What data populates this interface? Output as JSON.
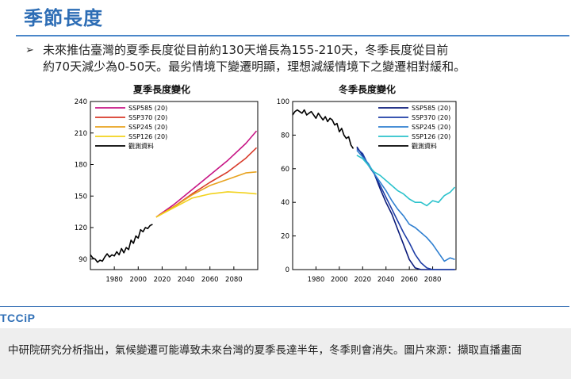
{
  "slide": {
    "title": "季節長度",
    "bullet_line1": "未來推估臺灣的夏季長度從目前約130天增長為155-210天，冬季長度從目前",
    "bullet_line2": "約70天減少為0-50天。最劣情境下變遷明顯，理想減緩情境下之變遷相對緩和。",
    "logo": "TCCiP"
  },
  "caption": "中研院研究分析指出，氣候變遷可能導致未來台灣的夏季長達半年，冬季則會消失。圖片來源：擷取直播畫面",
  "chart_data": [
    {
      "type": "line",
      "title": "夏季長度變化",
      "xlim": [
        1960,
        2100
      ],
      "ylim": [
        80,
        240
      ],
      "xticks": [
        1980,
        2000,
        2020,
        2040,
        2060,
        2080
      ],
      "yticks": [
        90,
        120,
        150,
        180,
        210,
        240
      ],
      "legend_position": "top-left",
      "series": [
        {
          "name": "SSP585 (20)",
          "color": "#c71585",
          "x": [
            2015,
            2030,
            2045,
            2060,
            2075,
            2090,
            2099
          ],
          "y": [
            130,
            142,
            156,
            170,
            184,
            200,
            212
          ]
        },
        {
          "name": "SSP370 (20)",
          "color": "#d83a2a",
          "x": [
            2015,
            2030,
            2045,
            2060,
            2075,
            2090,
            2099
          ],
          "y": [
            130,
            140,
            152,
            163,
            173,
            186,
            196
          ]
        },
        {
          "name": "SSP245 (20)",
          "color": "#e8a21e",
          "x": [
            2015,
            2030,
            2045,
            2060,
            2075,
            2090,
            2099
          ],
          "y": [
            130,
            140,
            151,
            160,
            166,
            172,
            173
          ]
        },
        {
          "name": "SSP126 (20)",
          "color": "#f2d21c",
          "x": [
            2015,
            2030,
            2045,
            2060,
            2075,
            2090,
            2099
          ],
          "y": [
            130,
            139,
            148,
            152,
            154,
            153,
            152
          ]
        },
        {
          "name": "觀測資料",
          "color": "#000000",
          "x": [
            1960,
            1962,
            1964,
            1966,
            1968,
            1970,
            1972,
            1974,
            1976,
            1978,
            1980,
            1982,
            1984,
            1986,
            1988,
            1990,
            1992,
            1994,
            1996,
            1998,
            2000,
            2002,
            2004,
            2006,
            2008,
            2010,
            2012
          ],
          "y": [
            94,
            91,
            90,
            87,
            89,
            88,
            92,
            95,
            92,
            94,
            93,
            97,
            94,
            100,
            96,
            101,
            99,
            108,
            105,
            112,
            110,
            118,
            116,
            120,
            119,
            122,
            123
          ]
        }
      ]
    },
    {
      "type": "line",
      "title": "冬季長度變化",
      "xlim": [
        1960,
        2100
      ],
      "ylim": [
        0,
        100
      ],
      "xticks": [
        1980,
        2000,
        2020,
        2040,
        2060,
        2080
      ],
      "yticks": [
        0,
        20,
        40,
        60,
        80,
        100
      ],
      "legend_position": "top-right",
      "series": [
        {
          "name": "SSP585 (20)",
          "color": "#0a1a7a",
          "x": [
            2015,
            2020,
            2025,
            2030,
            2035,
            2040,
            2045,
            2050,
            2055,
            2060,
            2065,
            2070,
            2080,
            2090,
            2099
          ],
          "y": [
            73,
            68,
            62,
            57,
            48,
            40,
            33,
            24,
            15,
            6,
            1,
            0,
            0,
            0,
            0
          ]
        },
        {
          "name": "SSP370 (20)",
          "color": "#1f3ea6",
          "x": [
            2015,
            2020,
            2025,
            2030,
            2035,
            2040,
            2045,
            2050,
            2055,
            2060,
            2065,
            2070,
            2075,
            2080,
            2090,
            2099
          ],
          "y": [
            72,
            69,
            62,
            57,
            50,
            43,
            36,
            29,
            22,
            16,
            9,
            4,
            1,
            0,
            0,
            0
          ]
        },
        {
          "name": "SSP245 (20)",
          "color": "#2f7fd0",
          "x": [
            2015,
            2020,
            2025,
            2030,
            2035,
            2040,
            2045,
            2050,
            2055,
            2060,
            2065,
            2070,
            2075,
            2080,
            2085,
            2090,
            2095,
            2099
          ],
          "y": [
            71,
            67,
            63,
            57,
            52,
            47,
            41,
            36,
            32,
            27,
            25,
            22,
            19,
            15,
            10,
            5,
            7,
            6
          ]
        },
        {
          "name": "SSP126 (20)",
          "color": "#2bc2cc",
          "x": [
            2015,
            2020,
            2025,
            2030,
            2035,
            2040,
            2045,
            2050,
            2055,
            2060,
            2065,
            2070,
            2075,
            2080,
            2085,
            2090,
            2095,
            2099
          ],
          "y": [
            68,
            66,
            62,
            58,
            56,
            53,
            50,
            47,
            45,
            42,
            40,
            40,
            38,
            41,
            40,
            44,
            46,
            49
          ]
        },
        {
          "name": "觀測資料",
          "color": "#000000",
          "x": [
            1960,
            1962,
            1964,
            1966,
            1968,
            1970,
            1972,
            1974,
            1976,
            1978,
            1980,
            1982,
            1984,
            1986,
            1988,
            1990,
            1992,
            1994,
            1996,
            1998,
            2000,
            2002,
            2004,
            2006,
            2008,
            2010,
            2012
          ],
          "y": [
            92,
            94,
            95,
            94,
            93,
            95,
            92,
            93,
            94,
            92,
            90,
            93,
            91,
            89,
            91,
            88,
            90,
            89,
            86,
            87,
            82,
            84,
            80,
            78,
            79,
            74,
            72
          ]
        }
      ]
    }
  ]
}
